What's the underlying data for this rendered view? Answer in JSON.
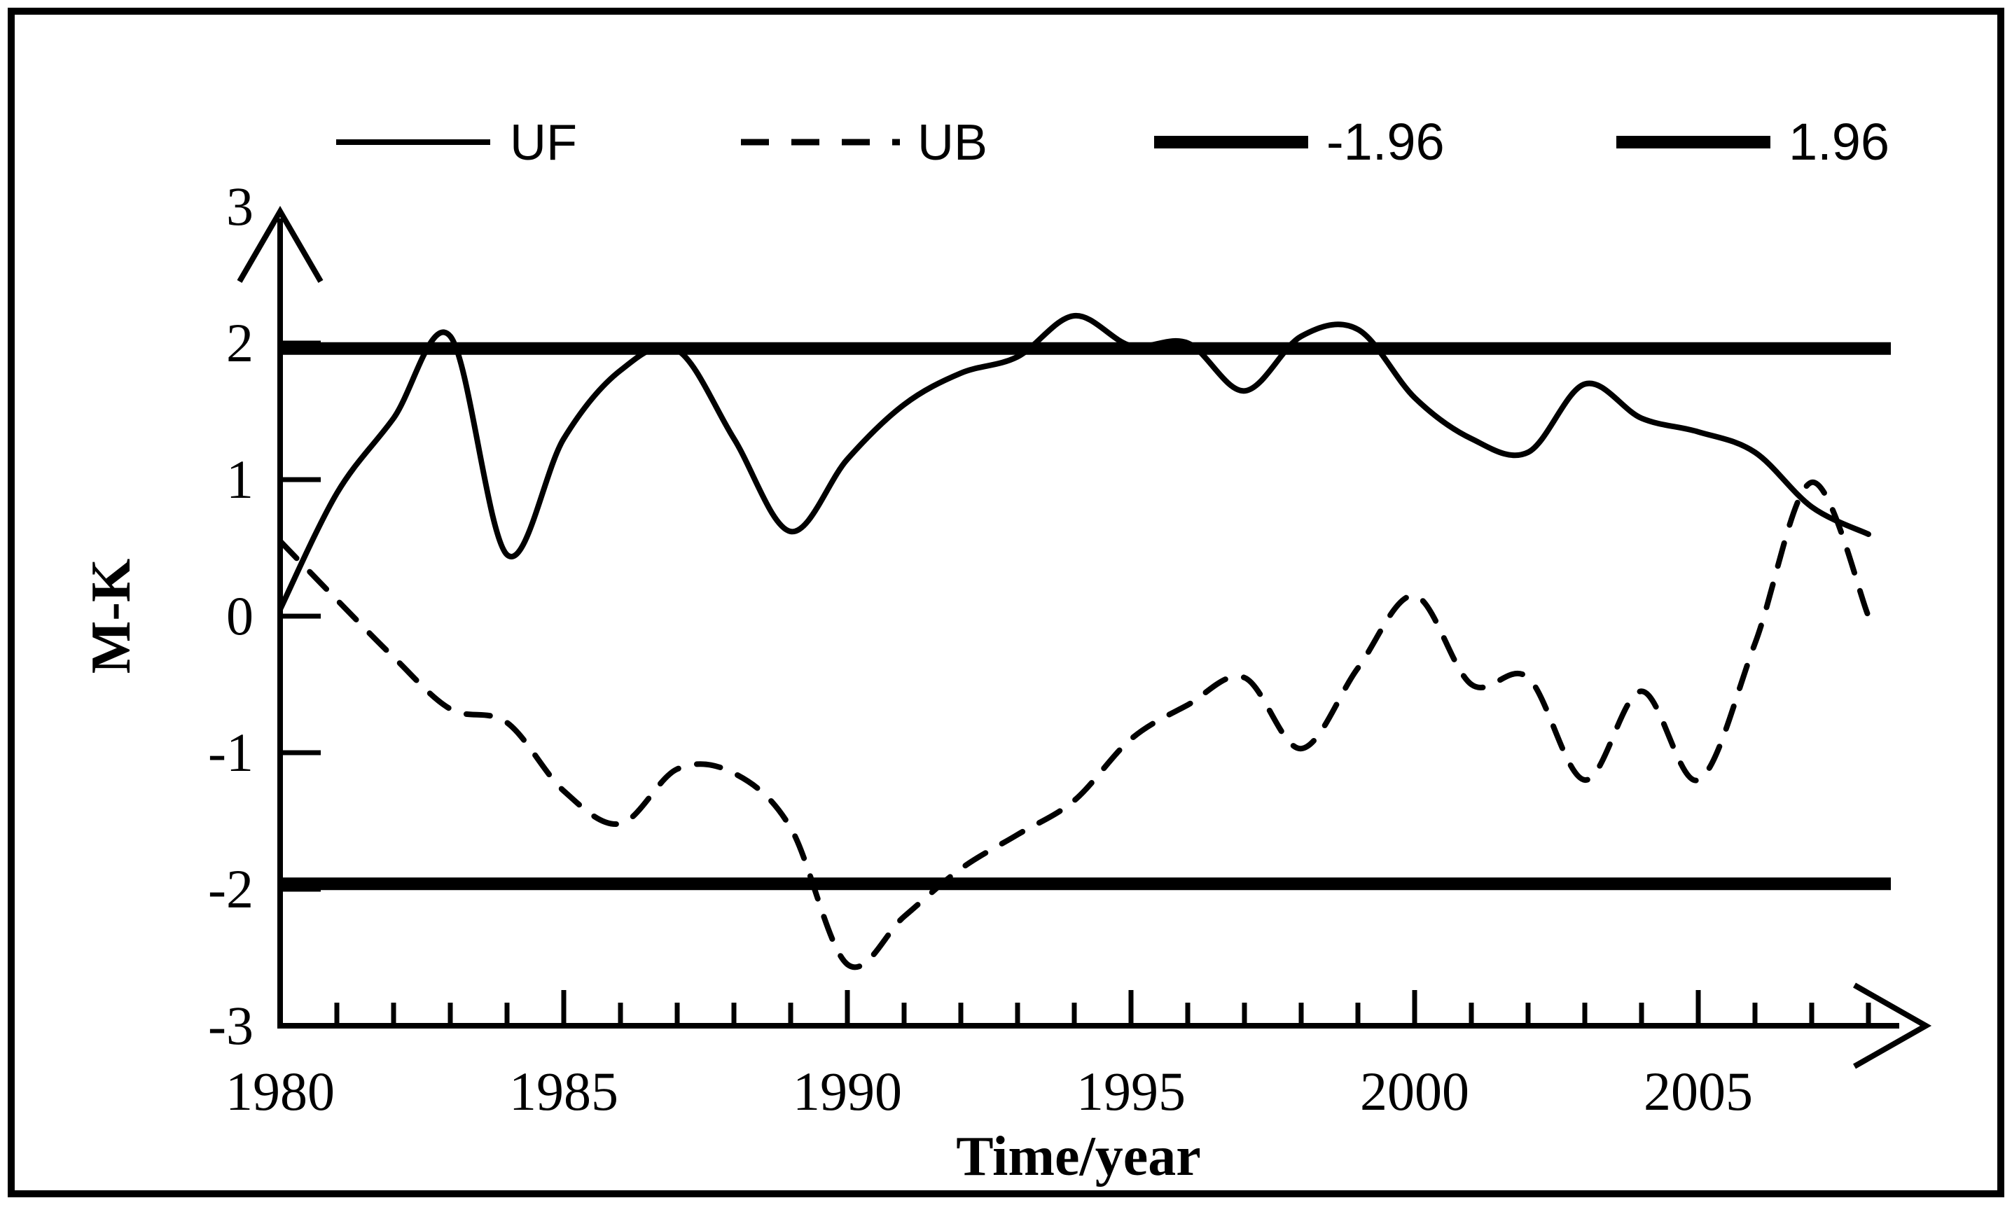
{
  "figure": {
    "background": "#ffffff",
    "ink_color": "#000000",
    "border_color": "#000000"
  },
  "chart_data": {
    "type": "line",
    "title": "",
    "xlabel": "Time/year",
    "ylabel": "M-K",
    "xlim": [
      1980,
      2008
    ],
    "ylim": [
      -3,
      3
    ],
    "grid": false,
    "legend_position": "top",
    "x_tick_labels": [
      "1980",
      "1985",
      "1990",
      "1995",
      "2000",
      "2005"
    ],
    "x_tick_years": [
      1980,
      1985,
      1990,
      1995,
      2000,
      2005
    ],
    "y_tick_labels": [
      "3",
      "2",
      "1",
      "0",
      "-1",
      "-2",
      "-3"
    ],
    "y_tick_values": [
      3,
      2,
      1,
      0,
      -1,
      -2,
      -3
    ],
    "x": [
      1980,
      1981,
      1982,
      1983,
      1984,
      1985,
      1986,
      1987,
      1988,
      1989,
      1990,
      1991,
      1992,
      1993,
      1994,
      1995,
      1996,
      1997,
      1998,
      1999,
      2000,
      2001,
      2002,
      2003,
      2004,
      2005,
      2006,
      2007,
      2008
    ],
    "series": [
      {
        "name": "UF",
        "style": "solid-thin",
        "values": [
          0.05,
          0.9,
          1.45,
          2.05,
          0.45,
          1.3,
          1.8,
          1.95,
          1.3,
          0.62,
          1.15,
          1.55,
          1.78,
          1.9,
          2.2,
          1.98,
          2.0,
          1.65,
          2.05,
          2.1,
          1.6,
          1.3,
          1.2,
          1.7,
          1.45,
          1.35,
          1.2,
          0.8,
          0.6
        ]
      },
      {
        "name": "UB",
        "style": "dashed",
        "values": [
          0.55,
          0.12,
          -0.3,
          -0.68,
          -0.78,
          -1.28,
          -1.52,
          -1.12,
          -1.15,
          -1.55,
          -2.55,
          -2.2,
          -1.85,
          -1.6,
          -1.35,
          -0.9,
          -0.65,
          -0.45,
          -0.97,
          -0.38,
          0.15,
          -0.5,
          -0.45,
          -1.2,
          -0.55,
          -1.2,
          -0.2,
          0.98,
          0.0
        ]
      }
    ],
    "reference_lines": [
      {
        "name": "-1.96",
        "value": -1.96,
        "style": "solid-thick"
      },
      {
        "name": "1.96",
        "value": 1.96,
        "style": "solid-thick"
      }
    ],
    "legend": {
      "items": [
        {
          "label": "UF",
          "style": "solid-thin"
        },
        {
          "label": "UB",
          "style": "dashed"
        },
        {
          "label": "-1.96",
          "style": "solid-thick"
        },
        {
          "label": "1.96",
          "style": "solid-thick"
        }
      ]
    }
  }
}
